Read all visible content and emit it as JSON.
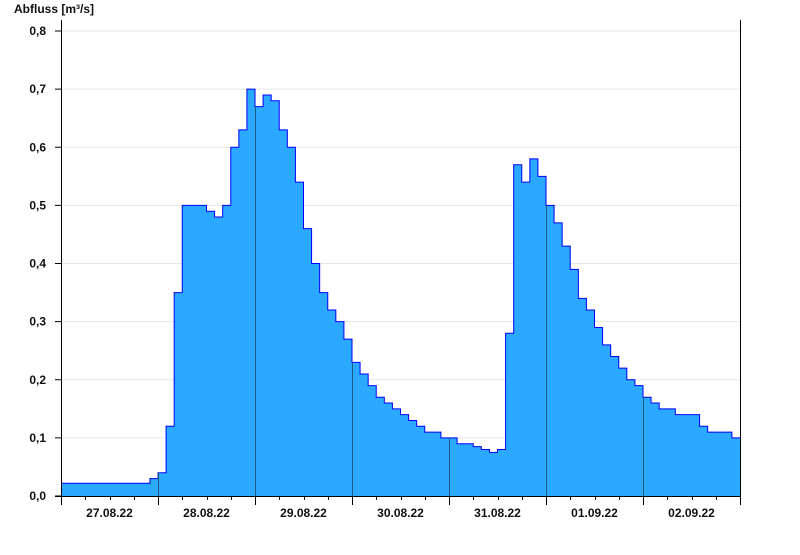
{
  "chart_data": {
    "type": "area",
    "title": "",
    "ylabel": "Abfluss [m³/s]",
    "xlabel": "",
    "ylim": [
      0,
      0.8
    ],
    "yticks": [
      "0,0",
      "0,1",
      "0,2",
      "0,3",
      "0,4",
      "0,5",
      "0,6",
      "0,7",
      "0,8"
    ],
    "xticks": [
      "27.08.22",
      "28.08.22",
      "29.08.22",
      "30.08.22",
      "31.08.22",
      "01.09.22",
      "02.09.22"
    ],
    "grid": "horizontal",
    "x_step": "2 hours, starting 27.08.22 00:00",
    "fill_color": "#2ba8ff",
    "line_color": "#0000ff",
    "values": [
      0.022,
      0.022,
      0.022,
      0.022,
      0.022,
      0.022,
      0.022,
      0.022,
      0.022,
      0.022,
      0.022,
      0.03,
      0.04,
      0.12,
      0.35,
      0.5,
      0.5,
      0.5,
      0.49,
      0.48,
      0.5,
      0.6,
      0.63,
      0.7,
      0.67,
      0.69,
      0.68,
      0.63,
      0.6,
      0.54,
      0.46,
      0.4,
      0.35,
      0.32,
      0.3,
      0.27,
      0.23,
      0.21,
      0.19,
      0.17,
      0.16,
      0.15,
      0.14,
      0.13,
      0.12,
      0.11,
      0.11,
      0.1,
      0.1,
      0.09,
      0.09,
      0.085,
      0.08,
      0.075,
      0.08,
      0.28,
      0.57,
      0.54,
      0.58,
      0.55,
      0.5,
      0.47,
      0.43,
      0.39,
      0.34,
      0.32,
      0.29,
      0.26,
      0.24,
      0.22,
      0.2,
      0.19,
      0.17,
      0.16,
      0.15,
      0.15,
      0.14,
      0.14,
      0.14,
      0.12,
      0.11,
      0.11,
      0.11,
      0.1
    ]
  }
}
